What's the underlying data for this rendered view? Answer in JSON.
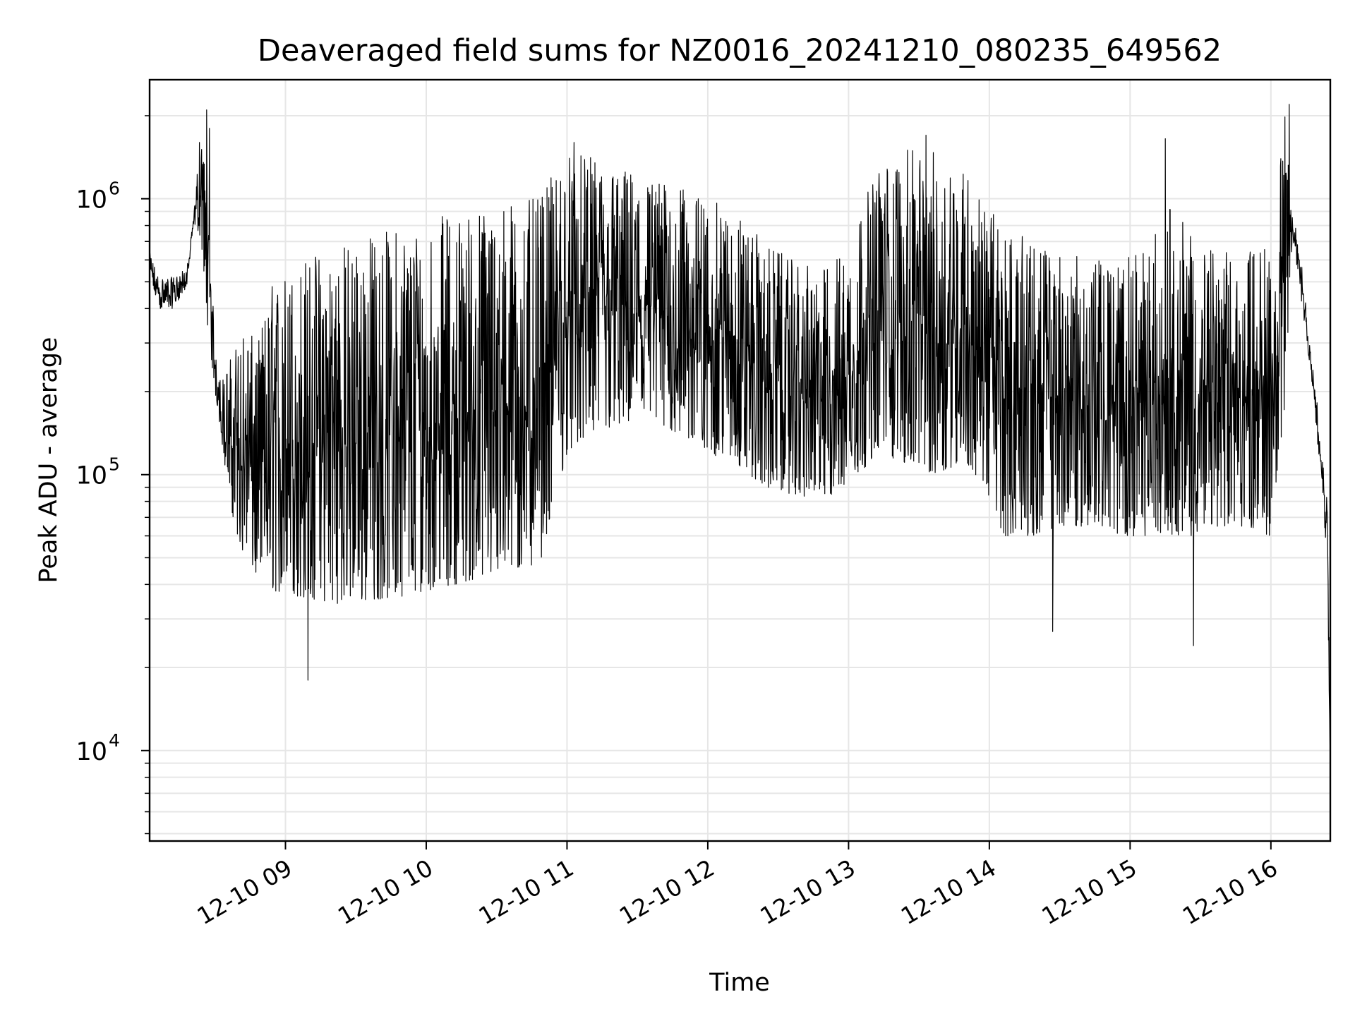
{
  "chart_data": {
    "type": "line",
    "title": "Deaveraged field sums for NZ0016_20241210_080235_649562",
    "xlabel": "Time",
    "ylabel": "Peak ADU - average",
    "yscale": "log",
    "ylim": [
      4700,
      2700000
    ],
    "xlim": [
      "12-10 08:02",
      "12-10 16:25"
    ],
    "grid": true,
    "line_color": "#000000",
    "grid_color": "#e6e6e6",
    "x_ticks": [
      "12-10 09",
      "12-10 10",
      "12-10 11",
      "12-10 12",
      "12-10 13",
      "12-10 14",
      "12-10 15",
      "12-10 16"
    ],
    "y_ticks": [
      {
        "base": "10",
        "exp": "4"
      },
      {
        "base": "10",
        "exp": "5"
      },
      {
        "base": "10",
        "exp": "6"
      }
    ],
    "series": [
      {
        "x_hours": [
          8.03,
          8.1,
          8.2,
          8.3,
          8.35,
          8.4,
          8.45,
          8.5,
          8.55,
          8.6,
          8.7,
          8.8,
          8.9,
          9.0,
          9.2,
          9.4,
          9.6,
          9.8,
          10.0,
          10.2,
          10.4,
          10.6,
          10.8,
          11.0,
          11.2,
          11.4,
          11.6,
          11.8,
          12.0,
          12.2,
          12.4,
          12.6,
          12.8,
          13.0,
          13.2,
          13.4,
          13.6,
          13.8,
          13.95,
          14.1,
          14.3,
          14.5,
          14.7,
          14.9,
          15.1,
          15.2,
          15.3,
          15.45,
          15.6,
          15.8,
          16.0,
          16.1,
          16.15,
          16.2,
          16.3,
          16.4,
          16.42
        ],
        "min": [
          530000,
          400000,
          400000,
          480000,
          820000,
          720000,
          330000,
          200000,
          130000,
          80000,
          50000,
          42000,
          38000,
          37000,
          35000,
          34000,
          35000,
          36000,
          38000,
          40000,
          42000,
          44000,
          46000,
          120000,
          140000,
          150000,
          150000,
          140000,
          120000,
          110000,
          90000,
          85000,
          80000,
          90000,
          120000,
          110000,
          100000,
          110000,
          95000,
          60000,
          60000,
          65000,
          65000,
          60000,
          60000,
          62000,
          60000,
          60000,
          65000,
          65000,
          60000,
          180000,
          700000,
          500000,
          200000,
          50000,
          10000
        ],
        "max": [
          650000,
          520000,
          520000,
          560000,
          880000,
          2000000,
          900000,
          300000,
          220000,
          260000,
          350000,
          300000,
          500000,
          550000,
          650000,
          700000,
          750000,
          800000,
          850000,
          900000,
          950000,
          1000000,
          1000000,
          1500000,
          1400000,
          1300000,
          1200000,
          1100000,
          1000000,
          900000,
          700000,
          600000,
          550000,
          700000,
          1300000,
          1500000,
          1500000,
          1400000,
          1000000,
          800000,
          700000,
          650000,
          600000,
          600000,
          650000,
          800000,
          1000000,
          700000,
          650000,
          650000,
          700000,
          2000000,
          900000,
          700000,
          250000,
          80000,
          12000
        ]
      }
    ],
    "annotation_spikes": [
      {
        "t": 8.44,
        "v": 2100000
      },
      {
        "t": 8.46,
        "v": 1800000
      },
      {
        "t": 9.16,
        "v": 18000
      },
      {
        "t": 14.45,
        "v": 27000
      },
      {
        "t": 15.45,
        "v": 24000
      },
      {
        "t": 15.25,
        "v": 1650000
      },
      {
        "t": 16.13,
        "v": 2200000
      },
      {
        "t": 13.55,
        "v": 1700000
      },
      {
        "t": 11.05,
        "v": 1600000
      }
    ]
  }
}
